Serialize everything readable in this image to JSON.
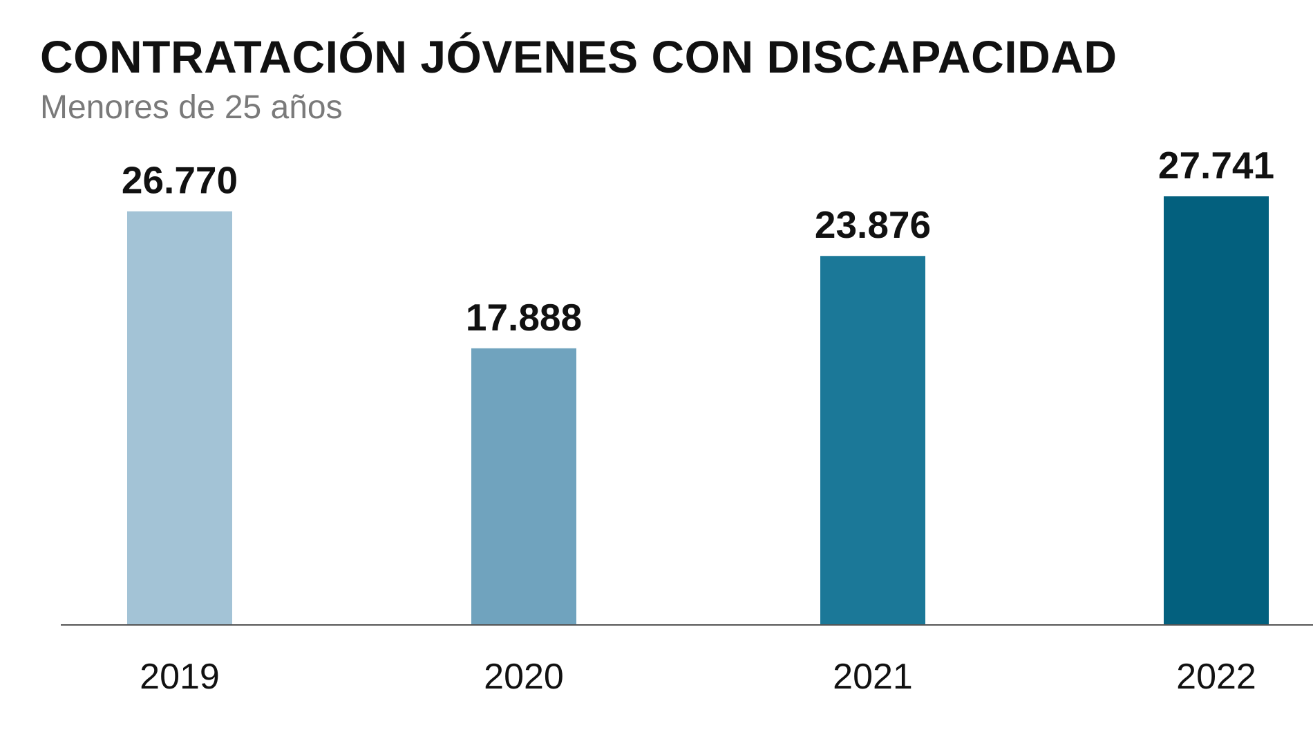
{
  "header": {
    "title": "CONTRATACIÓN JÓVENES CON DISCAPACIDAD",
    "subtitle": "Menores de 25 años"
  },
  "chart_data": {
    "type": "bar",
    "title": "CONTRATACIÓN JÓVENES CON DISCAPACIDAD",
    "subtitle": "Menores de 25 años",
    "categories": [
      "2019",
      "2020",
      "2021",
      "2022"
    ],
    "values": [
      26770,
      17888,
      23876,
      27741
    ],
    "value_labels": [
      "26.770",
      "17.888",
      "23.876",
      "27.741"
    ],
    "bar_colors": [
      "#a3c3d6",
      "#70a3be",
      "#1b7898",
      "#03607e"
    ],
    "xlabel": "",
    "ylabel": "",
    "ylim": [
      0,
      27741
    ],
    "grid": false,
    "legend": "none"
  }
}
